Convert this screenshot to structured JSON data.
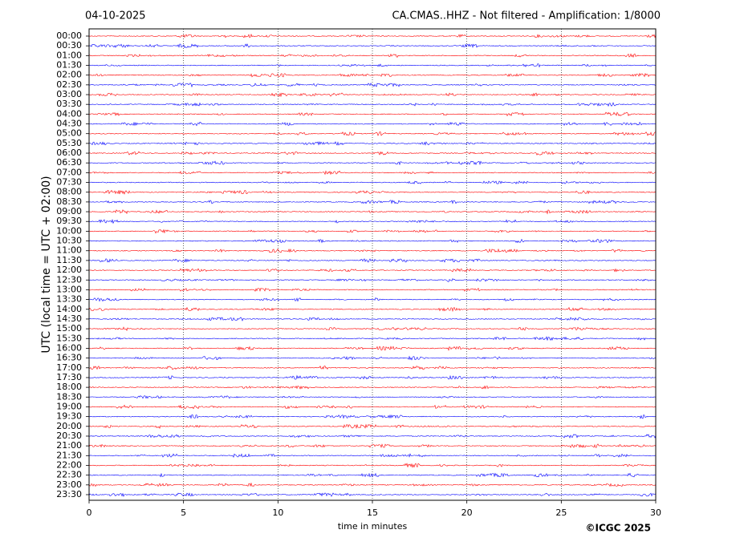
{
  "chart_data": {
    "type": "helicorder",
    "subtitle": "04-10-2025",
    "title": "CA.CMAS..HHZ - Not filtered - Amplification: 1/8000",
    "ylabel": "UTC (local time = UTC + 02:00)",
    "xlabel": "time in minutes",
    "credit": "©ICGC 2025",
    "xlim": [
      0,
      30
    ],
    "xticks": [
      0,
      5,
      10,
      15,
      20,
      25,
      30
    ],
    "grid": true,
    "colors": [
      "#ff0000",
      "#0000ff"
    ],
    "categories": [
      "00:00",
      "00:30",
      "01:00",
      "01:30",
      "02:00",
      "02:30",
      "03:00",
      "03:30",
      "04:00",
      "04:30",
      "05:00",
      "05:30",
      "06:00",
      "06:30",
      "07:00",
      "07:30",
      "08:00",
      "08:30",
      "09:00",
      "09:30",
      "10:00",
      "10:30",
      "11:00",
      "11:30",
      "12:00",
      "12:30",
      "13:00",
      "13:30",
      "14:00",
      "14:30",
      "15:00",
      "15:30",
      "16:00",
      "16:30",
      "17:00",
      "17:30",
      "18:00",
      "18:30",
      "19:00",
      "19:30",
      "20:00",
      "20:30",
      "21:00",
      "21:30",
      "22:00",
      "22:30",
      "23:00",
      "23:30"
    ]
  }
}
